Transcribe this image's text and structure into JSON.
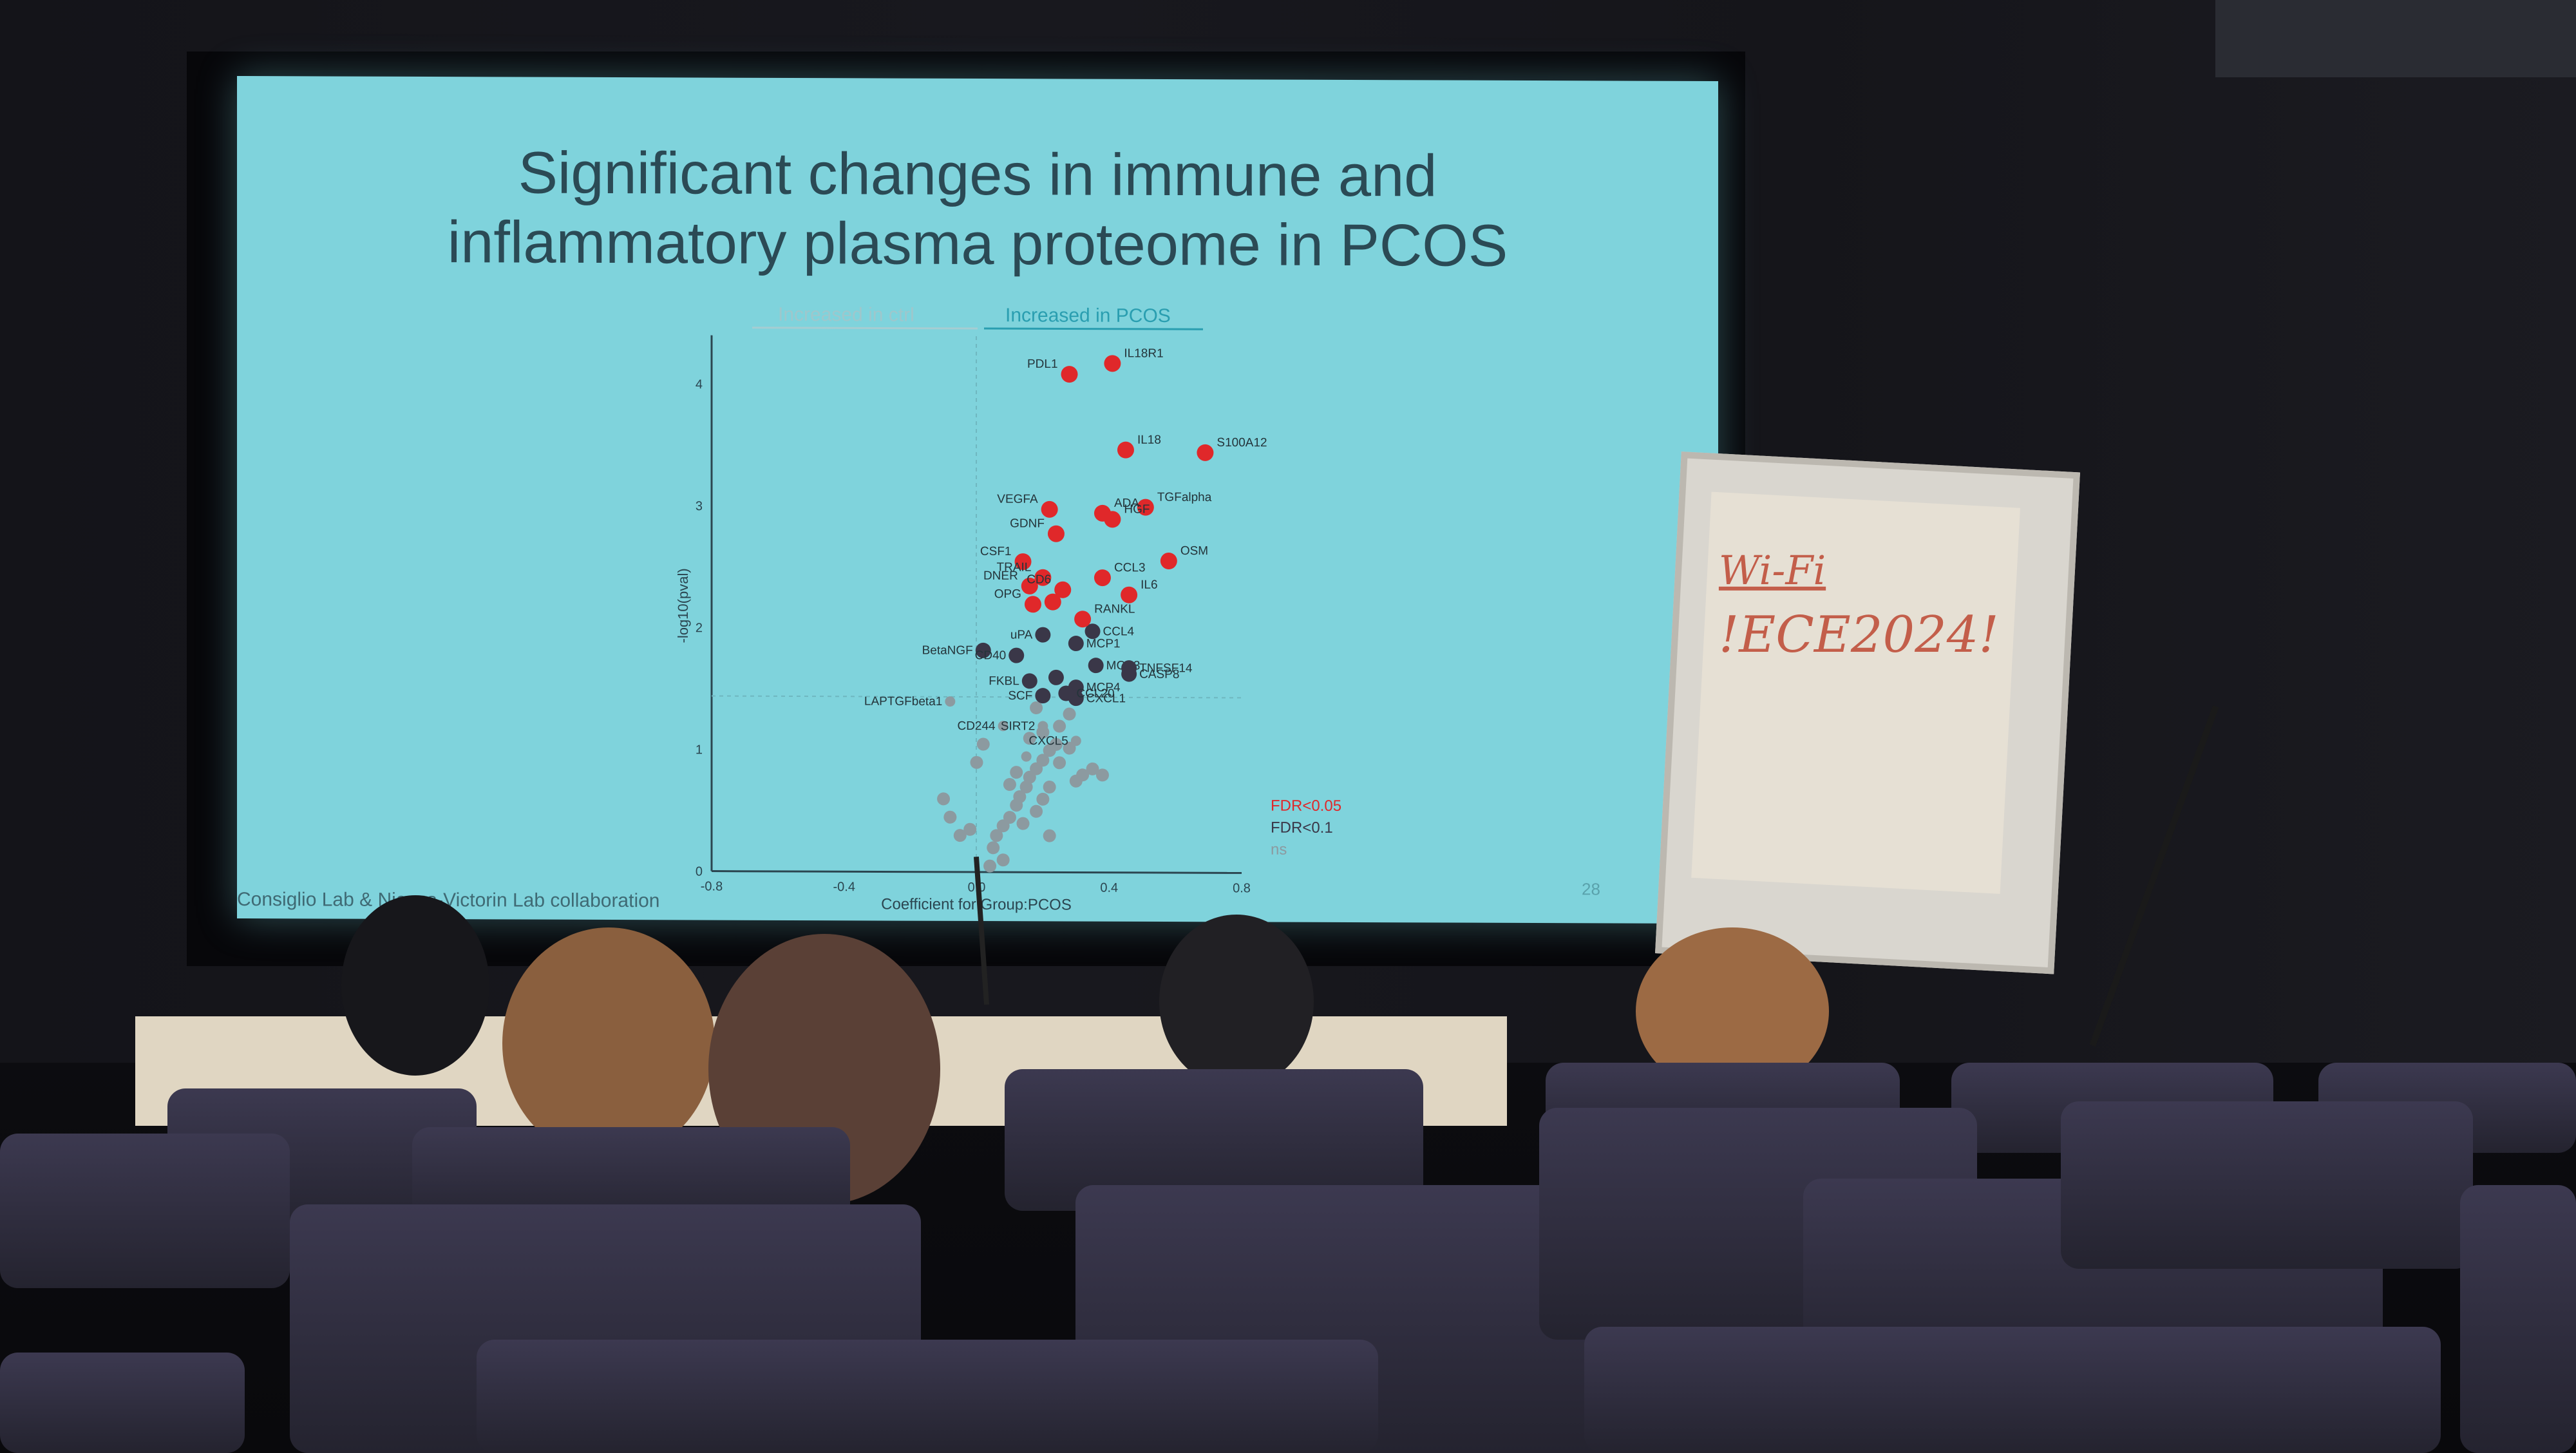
{
  "slide": {
    "title_line1": "Significant changes in immune and",
    "title_line2": "inflammatory plasma proteome in PCOS",
    "arrow_left": "Increased in ctrl",
    "arrow_right": "Increased in PCOS",
    "ylabel": "-log10(pval)",
    "xlabel": "Coefficient for Group:PCOS",
    "footer": "Consiglio Lab & Nieves-Victorin Lab collaboration",
    "page": "28",
    "legend": [
      "FDR<0.05",
      "FDR<0.1",
      "ns"
    ]
  },
  "chart_data": {
    "type": "scatter",
    "xlabel": "Coefficient for Group:PCOS",
    "ylabel": "-log10(pval)",
    "xlim": [
      -0.8,
      0.8
    ],
    "ylim": [
      0,
      4.4
    ],
    "xticks": [
      "-0.8",
      "-0.4",
      "0.0",
      "0.4",
      "0.8"
    ],
    "yticks": [
      "0",
      "1",
      "2",
      "3",
      "4"
    ],
    "colors": {
      "fdr005": "#e0282a",
      "fdr01": "#3a3748",
      "ns": "#8c9aa0"
    },
    "red_points": [
      {
        "label": "IL18R1",
        "x": 0.41,
        "y": 4.18
      },
      {
        "label": "PDL1",
        "x": 0.28,
        "y": 4.09
      },
      {
        "label": "IL18",
        "x": 0.45,
        "y": 3.47
      },
      {
        "label": "S100A12",
        "x": 0.69,
        "y": 3.45
      },
      {
        "label": "VEGFA",
        "x": 0.22,
        "y": 2.98
      },
      {
        "label": "TGFalpha",
        "x": 0.51,
        "y": 3.0
      },
      {
        "label": "HGF",
        "x": 0.41,
        "y": 2.9
      },
      {
        "label": "GDNF",
        "x": 0.24,
        "y": 2.78
      },
      {
        "label": "ADA",
        "x": 0.38,
        "y": 2.95
      },
      {
        "label": "CSF1",
        "x": 0.14,
        "y": 2.55
      },
      {
        "label": "TRAIL",
        "x": 0.2,
        "y": 2.42
      },
      {
        "label": "CCL3",
        "x": 0.38,
        "y": 2.42
      },
      {
        "label": "OSM",
        "x": 0.58,
        "y": 2.56
      },
      {
        "label": "DNER",
        "x": 0.16,
        "y": 2.35
      },
      {
        "label": "CD6",
        "x": 0.26,
        "y": 2.32
      },
      {
        "label": "IL6",
        "x": 0.46,
        "y": 2.28
      },
      {
        "label": "OPG",
        "x": 0.17,
        "y": 2.2
      },
      {
        "label": "RANKL",
        "x": 0.32,
        "y": 2.08
      },
      {
        "label": "",
        "x": 0.23,
        "y": 2.22
      }
    ],
    "dark_points": [
      {
        "label": "uPA",
        "x": 0.2,
        "y": 1.95
      },
      {
        "label": "MCP1",
        "x": 0.3,
        "y": 1.88
      },
      {
        "label": "CCL4",
        "x": 0.35,
        "y": 1.98
      },
      {
        "label": "BetaNGF",
        "x": 0.02,
        "y": 1.82
      },
      {
        "label": "CD40",
        "x": 0.12,
        "y": 1.78
      },
      {
        "label": "MCP3",
        "x": 0.36,
        "y": 1.7
      },
      {
        "label": "TNFSF14",
        "x": 0.46,
        "y": 1.68
      },
      {
        "label": "FKBL",
        "x": 0.16,
        "y": 1.57
      },
      {
        "label": "MCP4",
        "x": 0.3,
        "y": 1.52
      },
      {
        "label": "CASP8",
        "x": 0.46,
        "y": 1.63
      },
      {
        "label": "SCF",
        "x": 0.2,
        "y": 1.45
      },
      {
        "label": "CXCL1",
        "x": 0.3,
        "y": 1.43
      },
      {
        "label": "CCL20",
        "x": 0.27,
        "y": 1.47
      },
      {
        "label": "",
        "x": 0.24,
        "y": 1.6
      }
    ],
    "grey_labels": [
      {
        "label": "LAPTGFbeta1",
        "x": -0.08,
        "y": 1.4
      },
      {
        "label": "CD244",
        "x": 0.08,
        "y": 1.2
      },
      {
        "label": "SIRT2",
        "x": 0.2,
        "y": 1.2
      },
      {
        "label": "CXCL5",
        "x": 0.3,
        "y": 1.08
      },
      {
        "label": "",
        "x": 0.15,
        "y": 0.95
      }
    ],
    "ns_points": [
      [
        0.05,
        0.2
      ],
      [
        0.06,
        0.3
      ],
      [
        0.08,
        0.38
      ],
      [
        0.1,
        0.45
      ],
      [
        0.12,
        0.55
      ],
      [
        0.13,
        0.62
      ],
      [
        0.15,
        0.7
      ],
      [
        0.16,
        0.78
      ],
      [
        0.18,
        0.85
      ],
      [
        0.2,
        0.92
      ],
      [
        0.22,
        1.0
      ],
      [
        0.24,
        1.05
      ],
      [
        0.25,
        0.9
      ],
      [
        0.28,
        1.02
      ],
      [
        0.3,
        0.75
      ],
      [
        0.32,
        0.8
      ],
      [
        0.35,
        0.85
      ],
      [
        0.38,
        0.8
      ],
      [
        0.14,
        0.4
      ],
      [
        0.18,
        0.5
      ],
      [
        0.2,
        0.6
      ],
      [
        0.1,
        0.72
      ],
      [
        0.12,
        0.82
      ],
      [
        0.22,
        0.7
      ],
      [
        -0.05,
        0.3
      ],
      [
        -0.02,
        0.35
      ],
      [
        -0.1,
        0.6
      ],
      [
        -0.08,
        0.45
      ],
      [
        0.0,
        0.9
      ],
      [
        0.02,
        1.05
      ],
      [
        0.16,
        1.1
      ],
      [
        0.2,
        1.15
      ],
      [
        0.25,
        1.2
      ],
      [
        0.28,
        1.3
      ],
      [
        0.18,
        1.35
      ],
      [
        0.08,
        0.1
      ],
      [
        0.04,
        0.05
      ],
      [
        0.22,
        0.3
      ]
    ]
  },
  "flipchart": {
    "line1": "Wi-Fi",
    "line2": "!ECE2024!"
  }
}
